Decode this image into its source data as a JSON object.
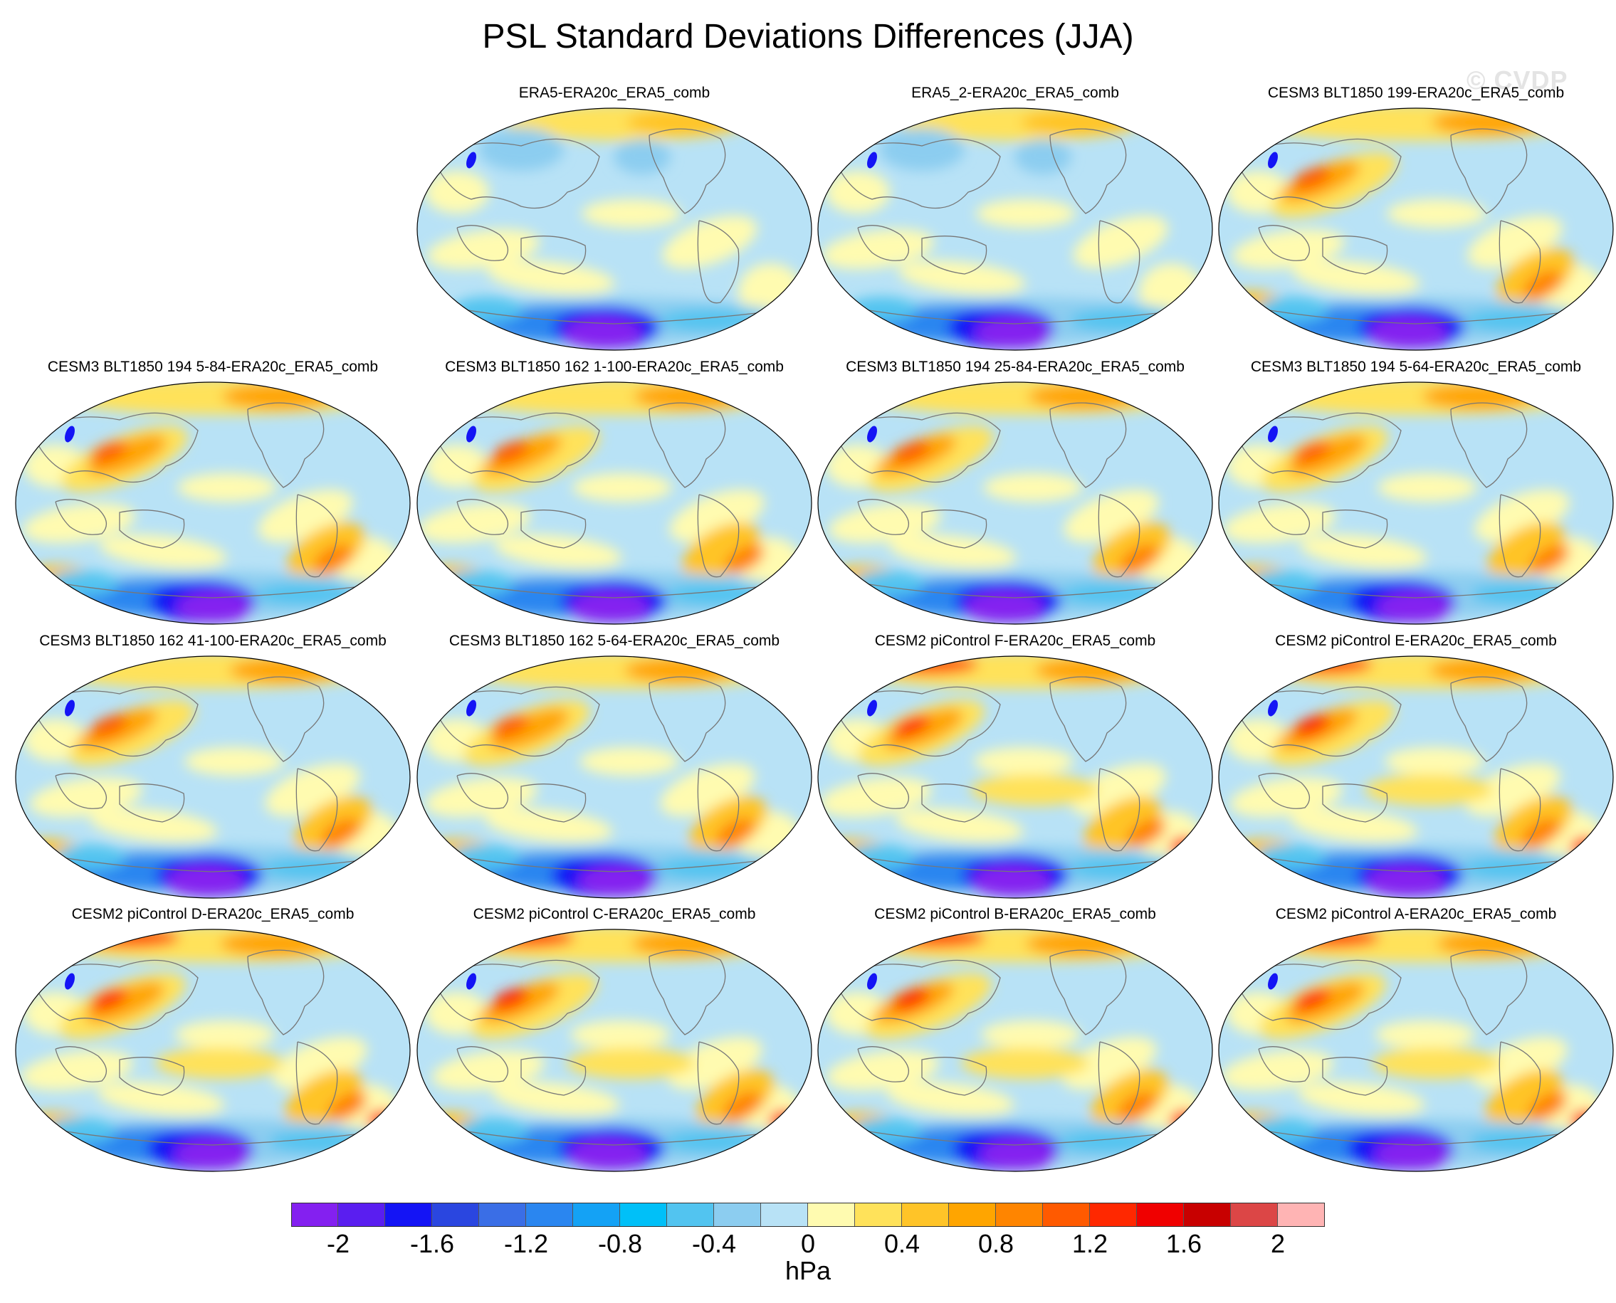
{
  "title": "PSL Standard Deviations Differences (JJA)",
  "watermark": "© CVDP",
  "panels": [
    {
      "label": "ERA5-ERA20c_ERA5_comb",
      "variant": 0
    },
    {
      "label": "ERA5_2-ERA20c_ERA5_comb",
      "variant": 1
    },
    {
      "label": "CESM3 BLT1850 199-ERA20c_ERA5_comb",
      "variant": 2
    },
    {
      "label": "CESM3 BLT1850 194 5-84-ERA20c_ERA5_comb",
      "variant": 3
    },
    {
      "label": "CESM3 BLT1850 162 1-100-ERA20c_ERA5_comb",
      "variant": 4
    },
    {
      "label": "CESM3 BLT1850 194 25-84-ERA20c_ERA5_comb",
      "variant": 5
    },
    {
      "label": "CESM3 BLT1850 194 5-64-ERA20c_ERA5_comb",
      "variant": 6
    },
    {
      "label": "CESM3 BLT1850 162 41-100-ERA20c_ERA5_comb",
      "variant": 7
    },
    {
      "label": "CESM3 BLT1850 162 5-64-ERA20c_ERA5_comb",
      "variant": 8
    },
    {
      "label": "CESM2 piControl F-ERA20c_ERA5_comb",
      "variant": 9
    },
    {
      "label": "CESM2 piControl E-ERA20c_ERA5_comb",
      "variant": 10
    },
    {
      "label": "CESM2 piControl D-ERA20c_ERA5_comb",
      "variant": 11
    },
    {
      "label": "CESM2 piControl C-ERA20c_ERA5_comb",
      "variant": 12
    },
    {
      "label": "CESM2 piControl B-ERA20c_ERA5_comb",
      "variant": 13
    },
    {
      "label": "CESM2 piControl A-ERA20c_ERA5_comb",
      "variant": 14
    }
  ],
  "colorbar": {
    "units": "hPa",
    "levels": [
      -2.2,
      -2.0,
      -1.8,
      -1.6,
      -1.4,
      -1.2,
      -1.0,
      -0.8,
      -0.6,
      -0.4,
      -0.2,
      0,
      0.2,
      0.4,
      0.6,
      0.8,
      1.0,
      1.2,
      1.4,
      1.6,
      1.8,
      2.0,
      2.2
    ],
    "tick_labels": [
      "-2",
      "-1.6",
      "-1.2",
      "-0.8",
      "-0.4",
      "0",
      "0.4",
      "0.8",
      "1.2",
      "1.6",
      "2"
    ],
    "colors": [
      "#8420f0",
      "#5a1ef0",
      "#1414f5",
      "#2a46e0",
      "#3a6ee6",
      "#2a86f0",
      "#14a2f5",
      "#00c0f8",
      "#52c4f0",
      "#8ccdf0",
      "#b8e2f6",
      "#fffbb0",
      "#ffe25a",
      "#ffc428",
      "#ffa500",
      "#ff8500",
      "#ff5a00",
      "#ff2800",
      "#f00000",
      "#c80000",
      "#dc4646",
      "#ffb4b4"
    ]
  }
}
